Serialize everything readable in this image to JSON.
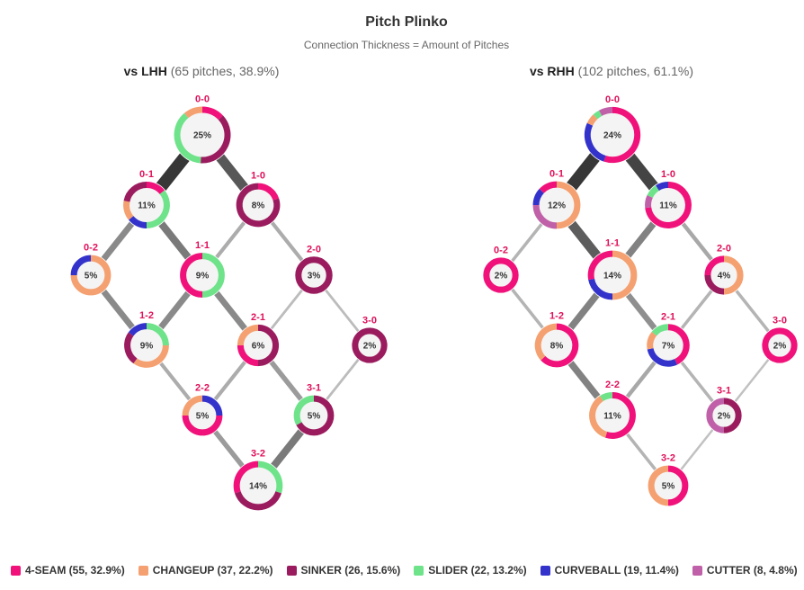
{
  "title": "Pitch Plinko",
  "subtitle": "Connection Thickness = Amount of Pitches",
  "pitch_colors": {
    "4-SEAM": "#f0127a",
    "CHANGEUP": "#f5a070",
    "SINKER": "#9b1c5e",
    "SLIDER": "#6ee38a",
    "CURVEBALL": "#3333cc",
    "CUTTER": "#c060a8"
  },
  "legend": [
    {
      "key": "4-SEAM",
      "label": "4-SEAM (55, 32.9%)",
      "color": "#f0127a"
    },
    {
      "key": "CHANGEUP",
      "label": "CHANGEUP (37, 22.2%)",
      "color": "#f5a070"
    },
    {
      "key": "SINKER",
      "label": "SINKER (26, 15.6%)",
      "color": "#9b1c5e"
    },
    {
      "key": "SLIDER",
      "label": "SLIDER (22, 13.2%)",
      "color": "#6ee38a"
    },
    {
      "key": "CURVEBALL",
      "label": "CURVEBALL (19, 11.4%)",
      "color": "#3333cc"
    },
    {
      "key": "CUTTER",
      "label": "CUTTER (8, 4.8%)",
      "color": "#c060a8"
    }
  ],
  "chart_data": [
    {
      "type": "network",
      "panel": "lhh",
      "title_hand": "vs LHH",
      "title_info": "(65 pitches, 38.9%)",
      "nodes": [
        {
          "count": "0-0",
          "pct": "25%",
          "mix": {
            "4-SEAM": 0.13,
            "SINKER": 0.38,
            "SLIDER": 0.38,
            "CHANGEUP": 0.11
          }
        },
        {
          "count": "0-1",
          "pct": "11%",
          "mix": {
            "4-SEAM": 0.14,
            "SLIDER": 0.36,
            "CURVEBALL": 0.14,
            "CHANGEUP": 0.14,
            "SINKER": 0.22
          }
        },
        {
          "count": "1-0",
          "pct": "8%",
          "mix": {
            "4-SEAM": 0.2,
            "SINKER": 0.8
          }
        },
        {
          "count": "0-2",
          "pct": "5%",
          "mix": {
            "CHANGEUP": 0.75,
            "CURVEBALL": 0.25
          }
        },
        {
          "count": "1-1",
          "pct": "9%",
          "mix": {
            "SLIDER": 0.5,
            "4-SEAM": 0.5
          }
        },
        {
          "count": "2-0",
          "pct": "3%",
          "mix": {
            "SINKER": 1.0
          }
        },
        {
          "count": "1-2",
          "pct": "9%",
          "mix": {
            "SLIDER": 0.25,
            "CHANGEUP": 0.35,
            "SINKER": 0.25,
            "CURVEBALL": 0.15
          }
        },
        {
          "count": "2-1",
          "pct": "6%",
          "mix": {
            "SINKER": 0.5,
            "4-SEAM": 0.25,
            "CHANGEUP": 0.25
          }
        },
        {
          "count": "3-0",
          "pct": "2%",
          "mix": {
            "SINKER": 1.0
          }
        },
        {
          "count": "2-2",
          "pct": "5%",
          "mix": {
            "CURVEBALL": 0.25,
            "4-SEAM": 0.5,
            "CHANGEUP": 0.25
          }
        },
        {
          "count": "3-1",
          "pct": "5%",
          "mix": {
            "SINKER": 0.67,
            "SLIDER": 0.33
          }
        },
        {
          "count": "3-2",
          "pct": "14%",
          "mix": {
            "SLIDER": 0.3,
            "SINKER": 0.4,
            "4-SEAM": 0.3
          }
        }
      ],
      "edges": [
        {
          "from": "0-0",
          "to": "0-1",
          "value": 9
        },
        {
          "from": "0-0",
          "to": "1-0",
          "value": 7
        },
        {
          "from": "0-1",
          "to": "0-2",
          "value": 4
        },
        {
          "from": "0-1",
          "to": "1-1",
          "value": 5
        },
        {
          "from": "1-0",
          "to": "1-1",
          "value": 2
        },
        {
          "from": "1-0",
          "to": "2-0",
          "value": 2
        },
        {
          "from": "0-2",
          "to": "1-2",
          "value": 4
        },
        {
          "from": "1-1",
          "to": "1-2",
          "value": 4
        },
        {
          "from": "1-1",
          "to": "2-1",
          "value": 4
        },
        {
          "from": "2-0",
          "to": "2-1",
          "value": 1
        },
        {
          "from": "2-0",
          "to": "3-0",
          "value": 1
        },
        {
          "from": "1-2",
          "to": "2-2",
          "value": 2
        },
        {
          "from": "2-1",
          "to": "2-2",
          "value": 2
        },
        {
          "from": "2-1",
          "to": "3-1",
          "value": 3
        },
        {
          "from": "3-0",
          "to": "3-1",
          "value": 1
        },
        {
          "from": "2-2",
          "to": "3-2",
          "value": 3
        },
        {
          "from": "3-1",
          "to": "3-2",
          "value": 5
        }
      ]
    },
    {
      "type": "network",
      "panel": "rhh",
      "title_hand": "vs RHH",
      "title_info": "(102 pitches, 61.1%)",
      "nodes": [
        {
          "count": "0-0",
          "pct": "24%",
          "mix": {
            "4-SEAM": 0.55,
            "CURVEBALL": 0.27,
            "CHANGEUP": 0.06,
            "SLIDER": 0.04,
            "CUTTER": 0.08
          }
        },
        {
          "count": "0-1",
          "pct": "12%",
          "mix": {
            "CHANGEUP": 0.5,
            "CUTTER": 0.25,
            "CURVEBALL": 0.12,
            "4-SEAM": 0.13
          }
        },
        {
          "count": "1-0",
          "pct": "11%",
          "mix": {
            "4-SEAM": 0.73,
            "CUTTER": 0.09,
            "SLIDER": 0.09,
            "CURVEBALL": 0.09
          }
        },
        {
          "count": "0-2",
          "pct": "2%",
          "mix": {
            "4-SEAM": 1.0
          }
        },
        {
          "count": "1-1",
          "pct": "14%",
          "mix": {
            "CHANGEUP": 0.5,
            "CURVEBALL": 0.22,
            "4-SEAM": 0.28
          }
        },
        {
          "count": "2-0",
          "pct": "4%",
          "mix": {
            "CHANGEUP": 0.5,
            "SINKER": 0.25,
            "4-SEAM": 0.25
          }
        },
        {
          "count": "1-2",
          "pct": "8%",
          "mix": {
            "4-SEAM": 0.63,
            "CHANGEUP": 0.37
          }
        },
        {
          "count": "2-1",
          "pct": "7%",
          "mix": {
            "4-SEAM": 0.43,
            "CURVEBALL": 0.29,
            "CHANGEUP": 0.14,
            "SLIDER": 0.14
          }
        },
        {
          "count": "3-0",
          "pct": "2%",
          "mix": {
            "4-SEAM": 1.0
          }
        },
        {
          "count": "2-2",
          "pct": "11%",
          "mix": {
            "4-SEAM": 0.55,
            "CHANGEUP": 0.36,
            "SLIDER": 0.09
          }
        },
        {
          "count": "3-1",
          "pct": "2%",
          "mix": {
            "SINKER": 0.5,
            "CUTTER": 0.5
          }
        },
        {
          "count": "3-2",
          "pct": "5%",
          "mix": {
            "4-SEAM": 0.5,
            "CHANGEUP": 0.5
          }
        }
      ],
      "edges": [
        {
          "from": "0-0",
          "to": "0-1",
          "value": 12
        },
        {
          "from": "0-0",
          "to": "1-0",
          "value": 11
        },
        {
          "from": "0-1",
          "to": "0-2",
          "value": 2
        },
        {
          "from": "0-1",
          "to": "1-1",
          "value": 9
        },
        {
          "from": "1-0",
          "to": "1-1",
          "value": 6
        },
        {
          "from": "1-0",
          "to": "2-0",
          "value": 3
        },
        {
          "from": "0-2",
          "to": "1-2",
          "value": 2
        },
        {
          "from": "1-1",
          "to": "1-2",
          "value": 6
        },
        {
          "from": "1-1",
          "to": "2-1",
          "value": 5
        },
        {
          "from": "2-0",
          "to": "2-1",
          "value": 2
        },
        {
          "from": "2-0",
          "to": "3-0",
          "value": 2
        },
        {
          "from": "1-2",
          "to": "2-2",
          "value": 6
        },
        {
          "from": "2-1",
          "to": "2-2",
          "value": 3
        },
        {
          "from": "2-1",
          "to": "3-1",
          "value": 2
        },
        {
          "from": "3-0",
          "to": "3-1",
          "value": 1
        },
        {
          "from": "2-2",
          "to": "3-2",
          "value": 2
        },
        {
          "from": "3-1",
          "to": "3-2",
          "value": 1
        }
      ]
    }
  ]
}
